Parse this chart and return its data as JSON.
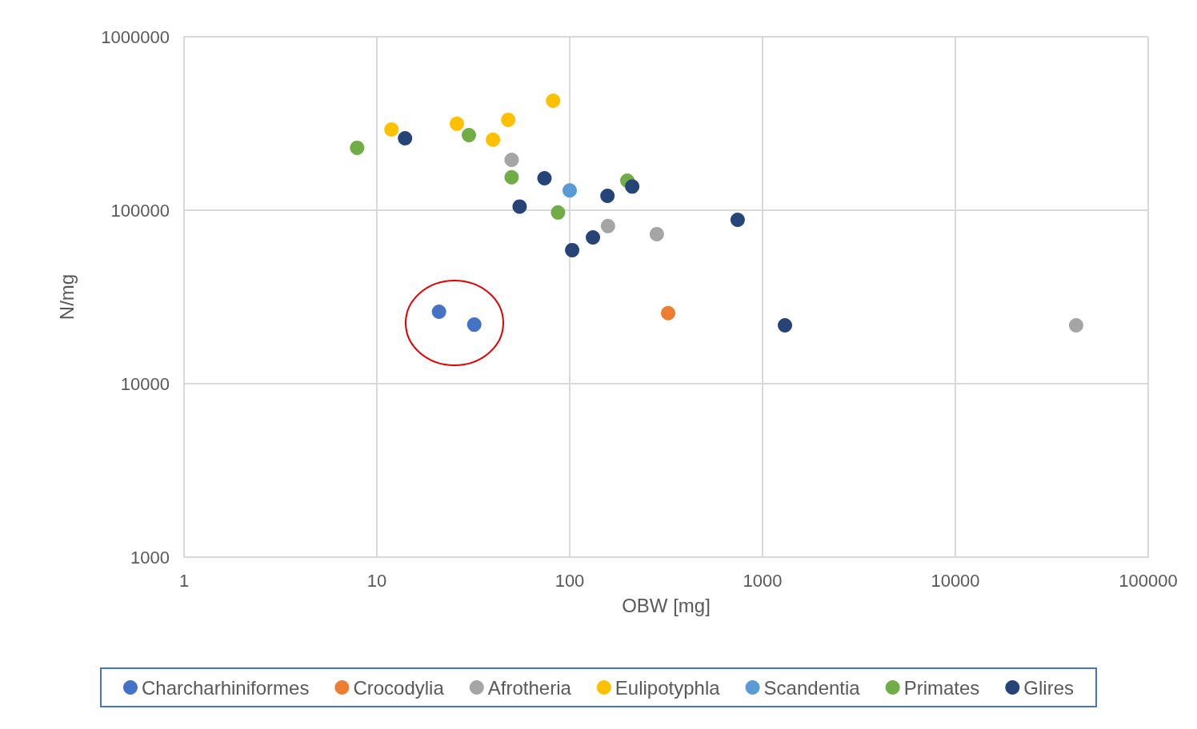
{
  "chart_data": {
    "type": "scatter",
    "xlabel": "OBW [mg]",
    "ylabel": "N/mg",
    "log": "xy",
    "xlim": [
      1,
      100000
    ],
    "xticks": [
      1,
      10,
      100,
      1000,
      10000,
      100000
    ],
    "ylim": [
      1000,
      1000000
    ],
    "yticks": [
      1000,
      10000,
      100000,
      1000000
    ],
    "grid": true,
    "legend": "bottom",
    "marker": "circle",
    "series": [
      {
        "name": "Charcharhiniformes",
        "color": "#4472c4",
        "x": [
          21,
          32
        ],
        "values": [
          26000,
          21900
        ]
      },
      {
        "name": "Crocodylia",
        "color": "#ed7d31",
        "x": [
          324
        ],
        "values": [
          25500
        ]
      },
      {
        "name": "Afrotheria",
        "color": "#a5a5a5",
        "x": [
          50,
          158,
          283,
          42300
        ],
        "values": [
          195000,
          81000,
          72800,
          21700
        ]
      },
      {
        "name": "Eulipotyphla",
        "color": "#ffc000",
        "x": [
          11.9,
          26,
          40,
          48,
          82
        ],
        "values": [
          292000,
          315000,
          255000,
          332000,
          428000
        ]
      },
      {
        "name": "Scandentia",
        "color": "#5b9bd5",
        "x": [
          100
        ],
        "values": [
          130000
        ]
      },
      {
        "name": "Primates",
        "color": "#70ad47",
        "x": [
          7.9,
          30,
          50,
          87,
          199
        ],
        "values": [
          229000,
          271000,
          155000,
          97000,
          148000
        ]
      },
      {
        "name": "Glires",
        "color": "#264478",
        "x": [
          14,
          55,
          74,
          103,
          132,
          157,
          211,
          743,
          1307
        ],
        "values": [
          260000,
          105000,
          153000,
          58900,
          69700,
          121000,
          137000,
          88000,
          21700
        ]
      }
    ]
  }
}
